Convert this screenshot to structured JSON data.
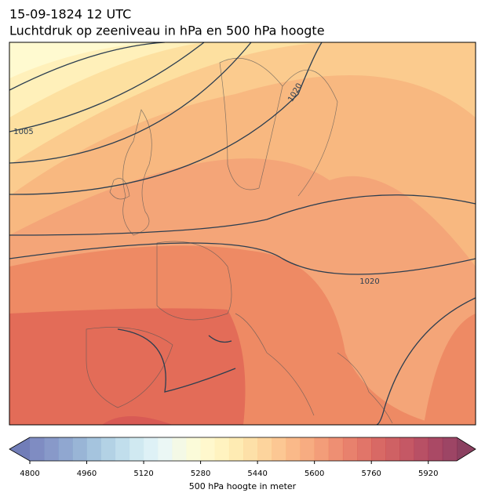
{
  "header": {
    "title": "15-09-1824 12 UTC",
    "subtitle": "Luchtdruk op zeeniveau in hPa en 500 hPa hoogte"
  },
  "map": {
    "contour_labels": [
      "1005",
      "1020",
      "1020"
    ]
  },
  "colorbar": {
    "label": "500 hPa hoogte in meter",
    "lim": [
      4800,
      6000
    ],
    "ticks": [
      4800,
      4960,
      5120,
      5280,
      5440,
      5600,
      5760,
      5920
    ],
    "colors": [
      "#5f6fb3",
      "#6a80bb",
      "#7491c4",
      "#80a3cc",
      "#8fb5d6",
      "#a0c7df",
      "#b2d6e7",
      "#c4e3ee",
      "#d6eef4",
      "#e6f5f2",
      "#f1f8e0",
      "#fafad0",
      "#fff6c0",
      "#fff0b0",
      "#fee6a0",
      "#fdd892",
      "#fcc985",
      "#fbb978",
      "#f9a86c",
      "#f59762",
      "#f08558",
      "#ea7350",
      "#e26249",
      "#d95243",
      "#ce443f",
      "#c3393d",
      "#b62e3e",
      "#a6243f",
      "#951b3f",
      "#84163f"
    ],
    "under_color": "#4e5da6",
    "over_color": "#6e1038"
  }
}
